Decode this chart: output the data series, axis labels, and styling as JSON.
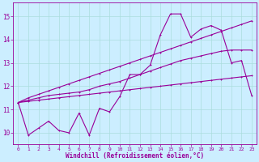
{
  "background_color": "#cceeff",
  "grid_color": "#aadddd",
  "line_color": "#990099",
  "xlabel": "Windchill (Refroidissement éolien,°C)",
  "ylim": [
    9.5,
    15.6
  ],
  "xlim": [
    -0.5,
    23.5
  ],
  "yticks": [
    10,
    11,
    12,
    13,
    14,
    15
  ],
  "xticks": [
    0,
    1,
    2,
    3,
    4,
    5,
    6,
    7,
    8,
    9,
    10,
    11,
    12,
    13,
    14,
    15,
    16,
    17,
    18,
    19,
    20,
    21,
    22,
    23
  ],
  "curve_low_x": [
    0,
    1,
    2,
    3,
    4,
    5,
    6,
    7,
    8,
    9,
    10,
    11,
    12,
    13,
    14,
    15,
    16,
    17,
    18,
    19,
    20,
    21,
    22,
    23
  ],
  "curve_low_y": [
    11.3,
    11.35,
    11.4,
    11.45,
    11.5,
    11.55,
    11.6,
    11.65,
    11.7,
    11.75,
    11.8,
    11.85,
    11.9,
    11.95,
    12.0,
    12.05,
    12.1,
    12.15,
    12.2,
    12.25,
    12.3,
    12.35,
    12.4,
    12.45
  ],
  "curve_high_x": [
    0,
    1,
    2,
    3,
    4,
    5,
    6,
    7,
    8,
    9,
    10,
    11,
    12,
    13,
    14,
    15,
    16,
    17,
    18,
    19,
    20,
    21,
    22,
    23
  ],
  "curve_high_y": [
    11.3,
    11.5,
    11.65,
    11.8,
    11.95,
    12.1,
    12.25,
    12.4,
    12.55,
    12.7,
    12.85,
    13.0,
    13.15,
    13.3,
    13.45,
    13.6,
    13.75,
    13.9,
    14.05,
    14.2,
    14.35,
    14.5,
    14.65,
    14.8
  ],
  "curve_jagged_x": [
    0,
    1,
    2,
    3,
    4,
    5,
    6,
    7,
    8,
    9,
    10,
    11,
    12,
    13,
    14,
    15,
    16,
    17,
    18,
    19,
    20,
    21,
    22,
    23
  ],
  "curve_jagged_y": [
    11.3,
    9.9,
    10.2,
    10.5,
    10.1,
    10.0,
    10.85,
    9.9,
    11.05,
    10.9,
    11.55,
    12.5,
    12.5,
    12.9,
    14.2,
    15.1,
    15.1,
    14.1,
    14.45,
    14.6,
    14.4,
    13.0,
    13.1,
    11.6
  ],
  "curve_mid_x": [
    0,
    1,
    2,
    3,
    4,
    5,
    6,
    7,
    8,
    9,
    10,
    11,
    12,
    13,
    14,
    15,
    16,
    17,
    18,
    19,
    20,
    21,
    22,
    23
  ],
  "curve_mid_y": [
    11.3,
    11.4,
    11.5,
    11.6,
    11.65,
    11.7,
    11.75,
    11.85,
    12.0,
    12.1,
    12.2,
    12.35,
    12.5,
    12.65,
    12.8,
    12.95,
    13.1,
    13.2,
    13.3,
    13.4,
    13.5,
    13.55,
    13.55,
    13.55
  ]
}
